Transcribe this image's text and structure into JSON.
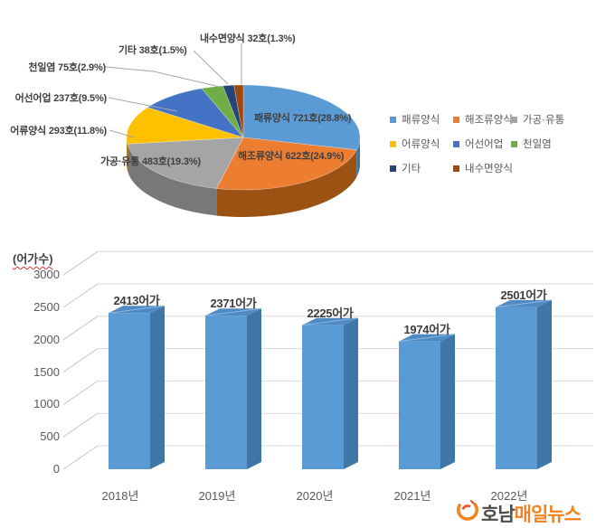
{
  "pie": {
    "point_labels": [
      "패류양식 721호(28.8%)",
      "해조류양식 622호(24.9%)",
      "가공·유통 483호(19.3%)",
      "어류양식 293호(11.8%)",
      "어선어업 237호(9.5%)",
      "천일염 75호(2.9%)",
      "기타 38호(1.5%)",
      "내수면양식 32호(1.3%)"
    ]
  },
  "legend": {
    "items": [
      {
        "label": "패류양식",
        "color": "#5B9BD5"
      },
      {
        "label": "해조류양식",
        "color": "#ED7D31"
      },
      {
        "label": "가공·유통",
        "color": "#A5A5A5"
      },
      {
        "label": "어류양식",
        "color": "#FFC000"
      },
      {
        "label": "어선어업",
        "color": "#4472C4"
      },
      {
        "label": "천일염",
        "color": "#70AD47"
      },
      {
        "label": "기타",
        "color": "#264478"
      },
      {
        "label": "내수면양식",
        "color": "#9E480E"
      }
    ]
  },
  "bar": {
    "unit_label": "(어가수)",
    "tick_labels": [
      "0",
      "500",
      "1000",
      "1500",
      "2000",
      "2500",
      "3000"
    ],
    "x_labels": [
      "2018년",
      "2019년",
      "2020년",
      "2021년",
      "2022년"
    ],
    "value_labels": [
      "2413어가",
      "2371어가",
      "2225어가",
      "1974어가",
      "2501어가"
    ]
  },
  "logo": {
    "text_dark": "호남",
    "text_orange": "매일뉴스"
  },
  "chart_data": [
    {
      "type": "pie",
      "style": "3d",
      "title": "",
      "unit": "호",
      "labels": [
        "패류양식",
        "해조류양식",
        "가공·유통",
        "어류양식",
        "어선어업",
        "천일염",
        "기타",
        "내수면양식"
      ],
      "values": [
        721,
        622,
        483,
        293,
        237,
        75,
        38,
        32
      ],
      "percents": [
        28.8,
        24.9,
        19.3,
        11.8,
        9.5,
        2.9,
        1.5,
        1.3
      ],
      "colors": [
        "#5B9BD5",
        "#ED7D31",
        "#A5A5A5",
        "#FFC000",
        "#4472C4",
        "#70AD47",
        "#264478",
        "#9E480E"
      ],
      "side_colors": [
        "#3E76A8",
        "#9C5213",
        "#787878",
        "#B88A00",
        "#2F5597",
        "#507E32",
        "#17294A",
        "#6E3209"
      ],
      "legend_position": "right",
      "start_angle_deg": 0,
      "direction": "clockwise"
    },
    {
      "type": "bar",
      "style": "3d",
      "categories": [
        "2018년",
        "2019년",
        "2020년",
        "2021년",
        "2022년"
      ],
      "values": [
        2413,
        2371,
        2225,
        1974,
        2501
      ],
      "ylabel": "(어가수)",
      "xlabel": "",
      "ylim": [
        0,
        3000
      ],
      "yticks": [
        0,
        500,
        1000,
        1500,
        2000,
        2500,
        3000
      ],
      "data_label_suffix": "어가",
      "bar_color": "#5B9BD5",
      "bar_side_color": "#3E76A8",
      "bar_top_color": "#4E8AC4",
      "grid": true,
      "gridline_color": "#D9D9D9"
    }
  ]
}
